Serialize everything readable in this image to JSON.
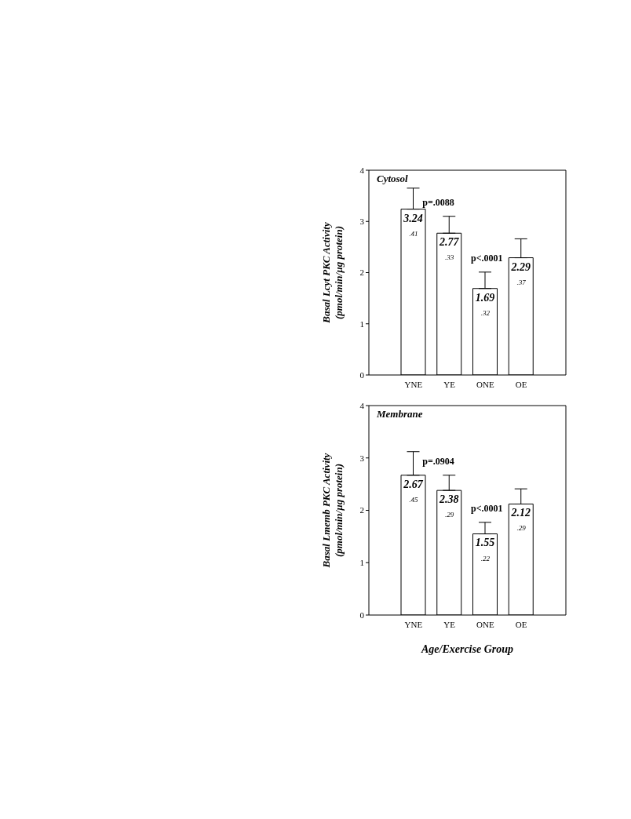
{
  "chart_data": [
    {
      "type": "bar",
      "title": "Cytosol",
      "ylabel": "Basal Lcyt PKC Activity\n(pmol/min/µg protein)",
      "categories": [
        "YNE",
        "YE",
        "ONE",
        "OE"
      ],
      "values": [
        3.24,
        2.77,
        1.69,
        2.29
      ],
      "color": "#ffffff",
      "errors": [
        [
          3.24,
          3.65
        ],
        [
          2.77,
          3.1
        ],
        [
          1.69,
          2.01
        ],
        [
          2.29,
          2.66
        ]
      ],
      "ylim": [
        0,
        4
      ],
      "yticks": [
        0,
        1,
        2,
        3,
        4
      ],
      "grid": false,
      "legend": false,
      "data_labels": true,
      "annotations": [
        {
          "text": ".41",
          "x": "YNE",
          "y": 3.24
        },
        {
          "text": ".33",
          "x": "YE",
          "y": 2.77
        },
        {
          "text": ".32",
          "x": "ONE",
          "y": 1.69
        },
        {
          "text": ".37",
          "x": "OE",
          "y": 2.29
        },
        "p=.0088",
        "p<.0001"
      ]
    },
    {
      "type": "bar",
      "title": "Membrane",
      "ylabel": "Basal Lmemb PKC Activity\n(pmol/min/µg protein)",
      "xlabel": "Age/Exercise Group",
      "categories": [
        "YNE",
        "YE",
        "ONE",
        "OE"
      ],
      "values": [
        2.67,
        2.38,
        1.55,
        2.12
      ],
      "color": "#ffffff",
      "errors": [
        [
          2.67,
          3.12
        ],
        [
          2.38,
          2.67
        ],
        [
          1.55,
          1.77
        ],
        [
          2.12,
          2.41
        ]
      ],
      "ylim": [
        0,
        4
      ],
      "yticks": [
        0,
        1,
        2,
        3,
        4
      ],
      "grid": false,
      "legend": false,
      "data_labels": true,
      "annotations": [
        {
          "text": ".45",
          "x": "YNE",
          "y": 2.67
        },
        {
          "text": ".29",
          "x": "YE",
          "y": 2.38
        },
        {
          "text": ".22",
          "x": "ONE",
          "y": 1.55
        },
        {
          "text": ".29",
          "x": "OE",
          "y": 2.12
        },
        "p=.0904",
        "p<.0001"
      ]
    }
  ]
}
